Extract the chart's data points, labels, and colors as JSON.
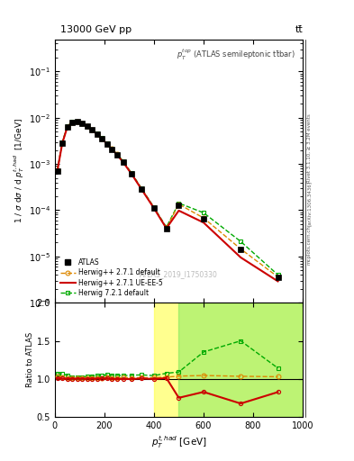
{
  "title_left": "13000 GeV pp",
  "title_right": "tt̅",
  "annotation": "ATLAS_2019_I1750330",
  "panel_label": "p_T^{top} (ATLAS semileptonic ttbar)",
  "ylabel_main": "1 / σ dσ / d p_T^{t,had}  [1/GeV]",
  "ylabel_ratio": "Ratio to ATLAS",
  "xlabel": "p_T^{t,had} [GeV]",
  "xlim": [
    0,
    1000
  ],
  "ylim_main": [
    1e-06,
    0.5
  ],
  "ylim_ratio": [
    0.5,
    2.0
  ],
  "atlas_x": [
    10,
    30,
    50,
    70,
    90,
    110,
    130,
    150,
    170,
    190,
    210,
    230,
    250,
    275,
    310,
    350,
    400,
    450,
    500,
    600,
    750,
    900
  ],
  "atlas_y": [
    0.0007,
    0.0028,
    0.0062,
    0.008,
    0.0082,
    0.0075,
    0.0065,
    0.0054,
    0.0044,
    0.0035,
    0.0027,
    0.0021,
    0.0016,
    0.0011,
    0.0006,
    0.00028,
    0.00011,
    4e-05,
    0.00013,
    6.5e-05,
    1.4e-05,
    3.5e-06
  ],
  "hw271_default_x": [
    10,
    30,
    50,
    70,
    90,
    110,
    130,
    150,
    170,
    190,
    210,
    230,
    250,
    275,
    310,
    350,
    400,
    450,
    500,
    600,
    750,
    900
  ],
  "hw271_default_y": [
    0.00072,
    0.00285,
    0.00625,
    0.00805,
    0.00825,
    0.00755,
    0.00655,
    0.00545,
    0.00445,
    0.00355,
    0.00275,
    0.00212,
    0.00162,
    0.00112,
    0.00061,
    0.000285,
    0.000112,
    4.1e-05,
    0.000135,
    6.8e-05,
    1.45e-05,
    3.6e-06
  ],
  "hw271_ueee5_x": [
    10,
    30,
    50,
    70,
    90,
    110,
    130,
    150,
    170,
    190,
    210,
    230,
    250,
    275,
    310,
    350,
    400,
    450,
    500,
    600,
    750,
    900
  ],
  "hw271_ueee5_y": [
    0.00071,
    0.00282,
    0.00622,
    0.00802,
    0.00822,
    0.00752,
    0.00652,
    0.00542,
    0.00442,
    0.00352,
    0.00272,
    0.0021,
    0.0016,
    0.0011,
    0.0006,
    0.000282,
    0.00011,
    4.05e-05,
    9.8e-05,
    5.4e-05,
    9.5e-06,
    2.9e-06
  ],
  "hw721_default_x": [
    10,
    30,
    50,
    70,
    90,
    110,
    130,
    150,
    170,
    190,
    210,
    230,
    250,
    275,
    310,
    350,
    400,
    450,
    500,
    600,
    750,
    900
  ],
  "hw721_default_y": [
    0.00075,
    0.003,
    0.0065,
    0.0082,
    0.0084,
    0.0077,
    0.0067,
    0.0056,
    0.0046,
    0.00365,
    0.00285,
    0.0022,
    0.00168,
    0.00115,
    0.00063,
    0.000295,
    0.000115,
    4.3e-05,
    0.000142,
    8.8e-05,
    2.1e-05,
    4e-06
  ],
  "ratio_hw271_default_x": [
    10,
    30,
    50,
    70,
    90,
    110,
    130,
    150,
    170,
    190,
    210,
    230,
    250,
    275,
    310,
    350,
    400,
    450,
    500,
    600,
    750,
    900
  ],
  "ratio_hw271_default_y": [
    1.03,
    1.02,
    1.01,
    1.006,
    1.006,
    1.007,
    1.008,
    1.009,
    1.011,
    1.014,
    1.019,
    1.01,
    1.013,
    1.018,
    1.017,
    1.018,
    1.018,
    1.025,
    1.038,
    1.046,
    1.036,
    1.03
  ],
  "ratio_hw271_ueee5_x": [
    10,
    30,
    50,
    70,
    90,
    110,
    130,
    150,
    170,
    190,
    210,
    230,
    250,
    275,
    310,
    350,
    400,
    450,
    500,
    600,
    750,
    900
  ],
  "ratio_hw271_ueee5_y": [
    1.01,
    1.007,
    1.003,
    1.003,
    1.003,
    1.003,
    1.003,
    1.004,
    1.005,
    1.006,
    1.007,
    1.0,
    1.0,
    1.0,
    1.0,
    1.007,
    1.0,
    1.013,
    0.754,
    0.831,
    0.679,
    0.829
  ],
  "ratio_hw721_default_x": [
    10,
    30,
    50,
    70,
    90,
    110,
    130,
    150,
    170,
    190,
    210,
    230,
    250,
    275,
    310,
    350,
    400,
    450,
    500,
    600,
    750,
    900
  ],
  "ratio_hw721_default_y": [
    1.07,
    1.07,
    1.05,
    1.025,
    1.024,
    1.027,
    1.031,
    1.037,
    1.045,
    1.043,
    1.056,
    1.048,
    1.05,
    1.045,
    1.05,
    1.054,
    1.045,
    1.075,
    1.092,
    1.354,
    1.5,
    1.143
  ],
  "atlas_color": "#000000",
  "hw271_default_color": "#dd8800",
  "hw271_ueee5_color": "#cc0000",
  "hw721_default_color": "#00aa00",
  "yellow_band_start": 400,
  "green_band_start": 500,
  "band_end": 1000,
  "arXiv_label": "[arXiv:1306.3436]",
  "mcplots_label": "mcplots.cern.ch",
  "rivet_label": "Rivet 3.1.10, ≥ 3.2M events"
}
